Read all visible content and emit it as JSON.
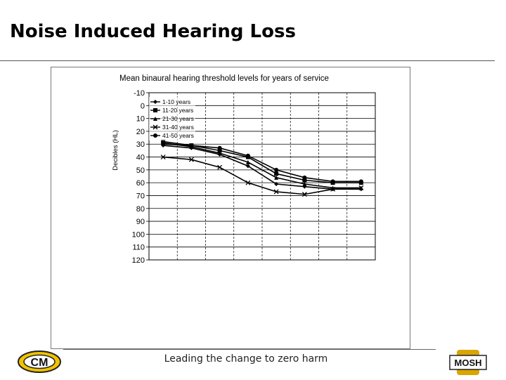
{
  "slide": {
    "title": "Noise Induced Hearing Loss",
    "footer": "Leading the change to zero harm",
    "logo_left_text": "CM",
    "logo_right_text": "MOSH"
  },
  "colors": {
    "series_line": "#000000",
    "grid": "#000000",
    "logo_left_bg": "#f2c200",
    "logo_right_bg": "#d9a500"
  },
  "chart_data": {
    "type": "line",
    "title": "Mean binaural hearing threshold levels for years of service",
    "ylabel": "Decibles (HL)",
    "xlabel": "",
    "ylim": [
      -10,
      120
    ],
    "y_inverted": true,
    "yticks": [
      -10,
      0,
      10,
      20,
      30,
      40,
      50,
      60,
      70,
      80,
      90,
      100,
      110,
      120
    ],
    "x": [
      1,
      2,
      3,
      4,
      5,
      6,
      7,
      8
    ],
    "grid": true,
    "legend_position": "top-left inside plot",
    "series": [
      {
        "name": "1-10 years",
        "marker": "diamond",
        "values": [
          31,
          33,
          38,
          47,
          61,
          63,
          65,
          65
        ]
      },
      {
        "name": "11-20 years",
        "marker": "square",
        "values": [
          28,
          31,
          35,
          40,
          53,
          58,
          60,
          60
        ]
      },
      {
        "name": "21-30 years",
        "marker": "triangle",
        "values": [
          29,
          32,
          37,
          44,
          56,
          61,
          64,
          64
        ]
      },
      {
        "name": "31-40 years",
        "marker": "x",
        "values": [
          40,
          42,
          48,
          60,
          67,
          69,
          65,
          64
        ]
      },
      {
        "name": "41-50 years",
        "marker": "circle",
        "values": [
          30,
          31,
          33,
          39,
          50,
          56,
          59,
          59
        ]
      }
    ]
  }
}
